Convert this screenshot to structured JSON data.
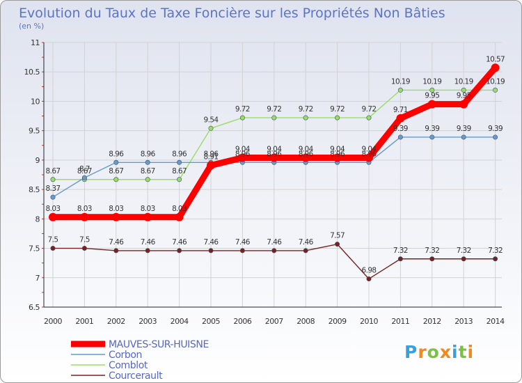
{
  "chart_data": {
    "type": "line",
    "title": "Evolution du Taux de Taxe Foncière sur les Propriétés Non Bâties",
    "subtitle": "(en %)",
    "x": [
      "2000",
      "2001",
      "2002",
      "2003",
      "2004",
      "2005",
      "2006",
      "2007",
      "2008",
      "2009",
      "2010",
      "2011",
      "2012",
      "2013",
      "2014"
    ],
    "ylim": [
      6.5,
      11
    ],
    "yticks": [
      "6.5",
      "7",
      "7.5",
      "8",
      "8.5",
      "9",
      "9.5",
      "10",
      "10.5",
      "11"
    ],
    "series": [
      {
        "name": "MAUVES-SUR-HUISNE",
        "color": "#ff0000",
        "values": [
          8.03,
          8.03,
          8.03,
          8.03,
          8.03,
          8.91,
          9.04,
          9.04,
          9.04,
          9.04,
          9.04,
          9.71,
          9.95,
          9.95,
          10.57
        ],
        "labels": [
          "8.03",
          "8.03",
          "8.03",
          "8.03",
          "8.03",
          "8.91",
          "9.04",
          "9.04",
          "9.04",
          "9.04",
          "9.04",
          "9.71",
          "9.95",
          "9.95",
          "10.57"
        ]
      },
      {
        "name": "Corbon",
        "color": "#6699cc",
        "values": [
          8.37,
          8.7,
          8.96,
          8.96,
          8.96,
          8.96,
          8.96,
          8.96,
          8.96,
          8.96,
          8.96,
          9.39,
          9.39,
          9.39,
          9.39
        ],
        "labels": [
          "8.37",
          "8.7",
          "8.96",
          "8.96",
          "8.96",
          "8.96",
          "8.96",
          "8.96",
          "8.96",
          "8.96",
          "8.96",
          "9.39",
          "9.39",
          "9.39",
          "9.39"
        ]
      },
      {
        "name": "Comblot",
        "color": "#99dd66",
        "values": [
          8.67,
          8.67,
          8.67,
          8.67,
          8.67,
          9.54,
          9.72,
          9.72,
          9.72,
          9.72,
          9.72,
          10.19,
          10.19,
          10.19,
          10.19
        ],
        "labels": [
          "8.67",
          "8.67",
          "8.67",
          "8.67",
          "8.67",
          "9.54",
          "9.72",
          "9.72",
          "9.72",
          "9.72",
          "9.72",
          "10.19",
          "10.19",
          "10.19",
          "10.19"
        ]
      },
      {
        "name": "Courcerault",
        "color": "#772222",
        "values": [
          7.5,
          7.5,
          7.46,
          7.46,
          7.46,
          7.46,
          7.46,
          7.46,
          7.46,
          7.57,
          6.98,
          7.32,
          7.32,
          7.32,
          7.32
        ],
        "labels": [
          "7.5",
          "7.5",
          "7.46",
          "7.46",
          "7.46",
          "7.46",
          "7.46",
          "7.46",
          "7.46",
          "7.57",
          "6.98",
          "7.32",
          "7.32",
          "7.32",
          "7.32"
        ]
      }
    ],
    "legend": [
      "MAUVES-SUR-HUISNE",
      "Corbon",
      "Comblot",
      "Courcerault"
    ]
  },
  "logo": {
    "text": "Proxiti",
    "letters": [
      "P",
      "r",
      "o",
      "x",
      "i",
      "t",
      "i"
    ],
    "colors": [
      "#3aa0dc",
      "#f08a1e",
      "#7cc242",
      "#f08a1e",
      "#3aa0dc",
      "#7cc242",
      "#f08a1e"
    ]
  }
}
